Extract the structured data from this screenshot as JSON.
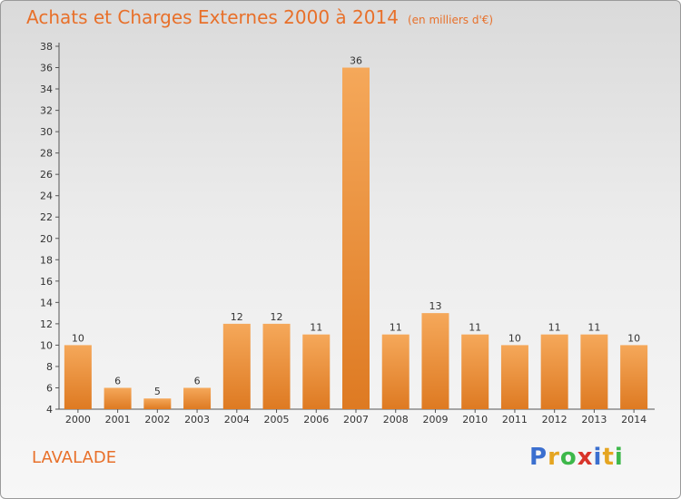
{
  "header": {
    "title": "Achats et Charges Externes 2000 à 2014",
    "subtitle": "(en milliers d'€)"
  },
  "footer": {
    "commune": "LAVALADE",
    "logo_letters": [
      "P",
      "r",
      "o",
      "x",
      "i",
      "t",
      "i"
    ],
    "logo_colors": [
      "#3b6fcf",
      "#e5a521",
      "#3db84a",
      "#d8342a",
      "#3b6fcf",
      "#e5a521",
      "#3db84a"
    ]
  },
  "colors": {
    "bar_light": "#f5a85a",
    "bar_dark": "#de7a22",
    "title": "#e8702a"
  },
  "chart_data": {
    "type": "bar",
    "categories": [
      "2000",
      "2001",
      "2002",
      "2003",
      "2004",
      "2005",
      "2006",
      "2007",
      "2008",
      "2009",
      "2010",
      "2011",
      "2012",
      "2013",
      "2014"
    ],
    "values": [
      10,
      6,
      5,
      6,
      12,
      12,
      11,
      36,
      11,
      13,
      11,
      10,
      11,
      11,
      10
    ],
    "ylim": [
      4,
      38
    ],
    "yticks": [
      4,
      6,
      8,
      10,
      12,
      14,
      16,
      18,
      20,
      22,
      24,
      26,
      28,
      30,
      32,
      34,
      36,
      38
    ],
    "grid": false
  }
}
